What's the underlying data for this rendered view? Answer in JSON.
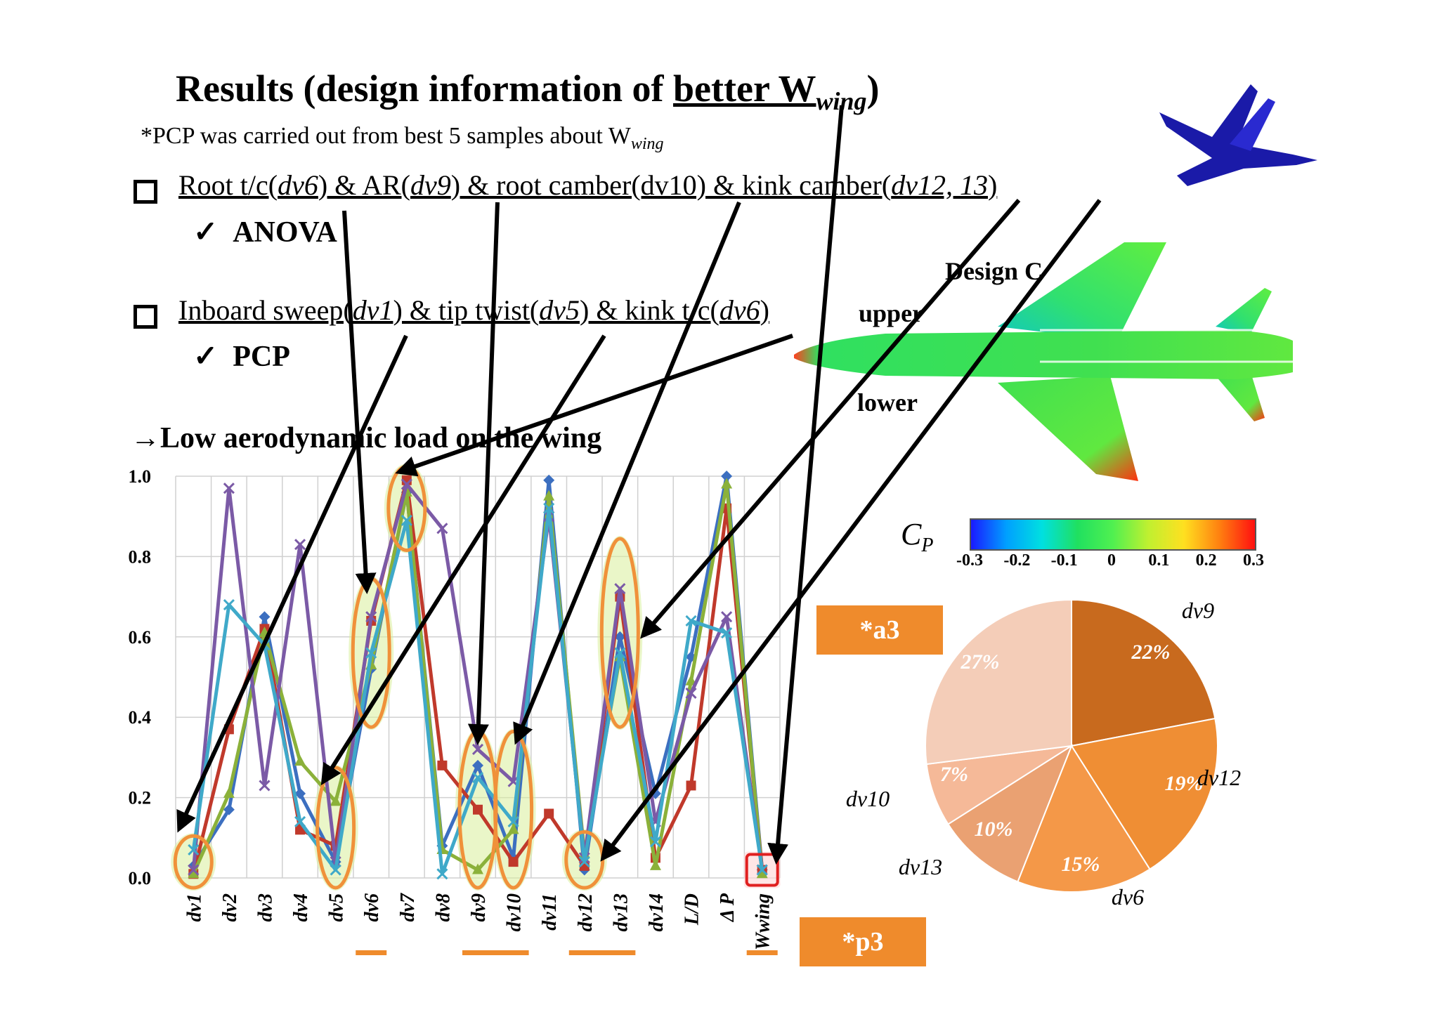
{
  "title": {
    "prefix": "Results (design information of ",
    "better": "better W",
    "sub": "wing",
    "suffix": ")"
  },
  "note": {
    "text": "*PCP was carried out from best 5 samples about W",
    "sub": "wing"
  },
  "bullet1": {
    "parts": [
      "Root t/c(",
      "dv6",
      ") & AR(",
      "dv9",
      ") & root camber(dv10) & kink camber(",
      "dv12, 13",
      ")"
    ],
    "check": "ANOVA"
  },
  "bullet2": {
    "parts": [
      "Inboard sweep(",
      "dv1",
      ") & tip twist(",
      "dv5",
      ") & kink t/c(",
      "dv6",
      ")"
    ],
    "check": "PCP"
  },
  "conclusion": "→Low aerodynamic load on the wing",
  "design": {
    "label": "Design C",
    "upper": "upper",
    "lower": "lower"
  },
  "colorbar": {
    "title": "C",
    "title_sub": "P",
    "ticks": [
      "-0.3",
      "-0.2",
      "-0.1",
      "0",
      "0.1",
      "0.2",
      "0.3"
    ],
    "colors": [
      "#1a1aff",
      "#00a0ff",
      "#00e0e0",
      "#20e060",
      "#50f050",
      "#c0f030",
      "#ffe020",
      "#ff8010",
      "#ff1010"
    ]
  },
  "tags": {
    "a3": "*a3",
    "p3": "*p3"
  },
  "colors": {
    "accent": "#ef8b2c",
    "highlight_red": "#e02020"
  },
  "chart_data": [
    {
      "type": "line",
      "categories": [
        "dv1",
        "dv2",
        "dv3",
        "dv4",
        "dv5",
        "dv6",
        "dv7",
        "dv8",
        "dv9",
        "dv10",
        "dv11",
        "dv12",
        "dv13",
        "dv14",
        "L/D",
        "Δ P",
        "Wwing"
      ],
      "ylim": [
        0,
        1
      ],
      "yticks": [
        "0.0",
        "0.2",
        "0.4",
        "0.6",
        "0.8",
        "1.0"
      ],
      "grid": true,
      "series": [
        {
          "color": "#3c6fc0",
          "values": [
            0.03,
            0.17,
            0.65,
            0.21,
            0.04,
            0.52,
            0.96,
            0.08,
            0.28,
            0.05,
            0.99,
            0.02,
            0.6,
            0.21,
            0.55,
            1.0,
            0.02
          ]
        },
        {
          "color": "#c0392b",
          "values": [
            0.01,
            0.37,
            0.62,
            0.12,
            0.08,
            0.64,
            0.99,
            0.28,
            0.17,
            0.04,
            0.16,
            0.03,
            0.7,
            0.05,
            0.23,
            0.92,
            0.02
          ]
        },
        {
          "color": "#8bb13a",
          "values": [
            0.01,
            0.21,
            0.61,
            0.29,
            0.19,
            0.53,
            0.96,
            0.07,
            0.02,
            0.12,
            0.95,
            0.06,
            0.55,
            0.03,
            0.49,
            0.98,
            0.01
          ]
        },
        {
          "color": "#7b5aa6",
          "values": [
            0.02,
            0.97,
            0.23,
            0.83,
            0.04,
            0.65,
            0.98,
            0.87,
            0.32,
            0.24,
            0.9,
            0.05,
            0.72,
            0.14,
            0.46,
            0.65,
            0.02
          ]
        },
        {
          "color": "#3fa9c9",
          "values": [
            0.07,
            0.68,
            0.58,
            0.14,
            0.02,
            0.56,
            0.89,
            0.01,
            0.25,
            0.14,
            0.92,
            0.04,
            0.56,
            0.09,
            0.64,
            0.61,
            0.02
          ]
        }
      ]
    },
    {
      "type": "pie",
      "labels": [
        "dv9",
        "dv12",
        "dv6",
        "dv13",
        "dv10",
        ""
      ],
      "values": [
        22,
        19,
        15,
        10,
        7,
        27
      ],
      "value_labels": [
        "22%",
        "19%",
        "15%",
        "10%",
        "7%",
        "27%"
      ],
      "colors": [
        "#c86a1e",
        "#ef8e34",
        "#f49848",
        "#eaa172",
        "#f5b998",
        "#f4cdb8"
      ]
    }
  ]
}
